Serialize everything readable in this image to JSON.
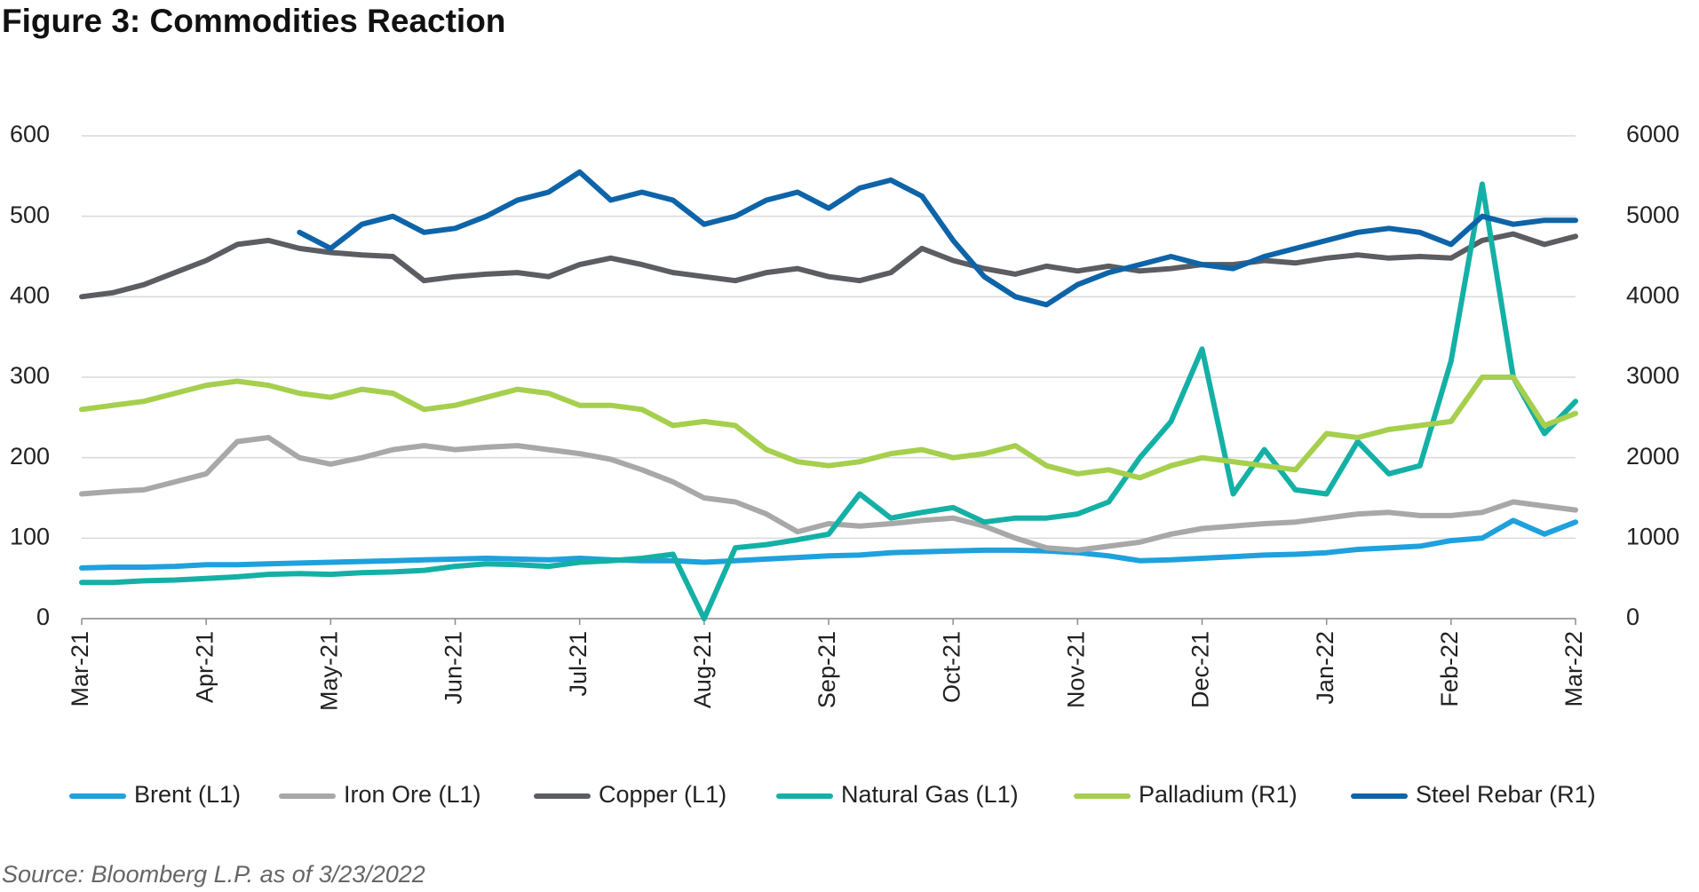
{
  "chart_data": {
    "type": "line",
    "title": "Figure 3: Commodities Reaction",
    "source": "Source: Bloomberg L.P. as of 3/23/2022",
    "x": [
      0,
      0.25,
      0.5,
      0.75,
      1,
      1.25,
      1.5,
      1.75,
      2,
      2.25,
      2.5,
      2.75,
      3,
      3.25,
      3.5,
      3.75,
      4,
      4.25,
      4.5,
      4.75,
      5,
      5.25,
      5.5,
      5.75,
      6,
      6.25,
      6.5,
      6.75,
      7,
      7.25,
      7.5,
      7.75,
      8,
      8.25,
      8.5,
      8.75,
      9,
      9.25,
      9.5,
      9.75,
      10,
      10.25,
      10.5,
      10.75,
      11,
      11.25,
      11.5,
      11.75,
      12
    ],
    "xlim": [
      0,
      12
    ],
    "xticks": [
      {
        "value": 0,
        "label": "Mar-21"
      },
      {
        "value": 1,
        "label": "Apr-21"
      },
      {
        "value": 2,
        "label": "May-21"
      },
      {
        "value": 3,
        "label": "Jun-21"
      },
      {
        "value": 4,
        "label": "Jul-21"
      },
      {
        "value": 5,
        "label": "Aug-21"
      },
      {
        "value": 6,
        "label": "Sep-21"
      },
      {
        "value": 7,
        "label": "Oct-21"
      },
      {
        "value": 8,
        "label": "Nov-21"
      },
      {
        "value": 9,
        "label": "Dec-21"
      },
      {
        "value": 10,
        "label": "Jan-22"
      },
      {
        "value": 11,
        "label": "Feb-22"
      },
      {
        "value": 12,
        "label": "Mar-22"
      }
    ],
    "ylim": [
      0,
      600
    ],
    "yticks": [
      0,
      100,
      200,
      300,
      400,
      500,
      600
    ],
    "y2lim": [
      0,
      6000
    ],
    "y2ticks": [
      0,
      1000,
      2000,
      3000,
      4000,
      5000,
      6000
    ],
    "grid": true,
    "legend": "bottom",
    "series": [
      {
        "name": "Brent (L1)",
        "color": "#1ea1dc",
        "values": [
          63,
          64,
          64,
          65,
          67,
          67,
          68,
          69,
          70,
          71,
          72,
          73,
          74,
          75,
          74,
          73,
          75,
          73,
          72,
          72,
          70,
          72,
          74,
          76,
          78,
          79,
          82,
          83,
          84,
          85,
          85,
          84,
          82,
          78,
          72,
          73,
          75,
          77,
          79,
          80,
          82,
          86,
          88,
          90,
          97,
          100,
          122,
          105,
          120
        ]
      },
      {
        "name": "Iron Ore (L1)",
        "color": "#a8a8a8",
        "values": [
          155,
          158,
          160,
          170,
          180,
          220,
          225,
          200,
          192,
          200,
          210,
          215,
          210,
          213,
          215,
          210,
          205,
          198,
          185,
          170,
          150,
          145,
          130,
          108,
          118,
          115,
          118,
          122,
          125,
          115,
          100,
          88,
          85,
          90,
          95,
          105,
          112,
          115,
          118,
          120,
          125,
          130,
          132,
          128,
          128,
          132,
          145,
          140,
          135
        ]
      },
      {
        "name": "Copper (L1)",
        "color": "#5b5d62",
        "values": [
          400,
          405,
          415,
          430,
          445,
          465,
          470,
          460,
          455,
          452,
          450,
          420,
          425,
          428,
          430,
          425,
          440,
          448,
          440,
          430,
          425,
          420,
          430,
          435,
          425,
          420,
          430,
          460,
          445,
          435,
          428,
          438,
          432,
          438,
          432,
          435,
          440,
          440,
          445,
          442,
          448,
          452,
          448,
          450,
          448,
          470,
          478,
          465,
          475
        ]
      },
      {
        "name": "Natural Gas (L1)",
        "color": "#14b0a6",
        "values": [
          45,
          45,
          47,
          48,
          50,
          52,
          55,
          56,
          55,
          57,
          58,
          60,
          65,
          68,
          67,
          65,
          70,
          72,
          75,
          80,
          0,
          88,
          92,
          98,
          105,
          155,
          125,
          132,
          138,
          120,
          125,
          125,
          130,
          145,
          200,
          245,
          335,
          155,
          210,
          160,
          155,
          220,
          180,
          190,
          320,
          540,
          300,
          230,
          270
        ]
      },
      {
        "name": "Palladium (R1)",
        "color": "#a5cf4d",
        "axis": "y2",
        "values": [
          2600,
          2650,
          2700,
          2800,
          2900,
          2950,
          2900,
          2800,
          2750,
          2850,
          2800,
          2600,
          2650,
          2750,
          2850,
          2800,
          2650,
          2650,
          2600,
          2400,
          2450,
          2400,
          2100,
          1950,
          1900,
          1950,
          2050,
          2100,
          2000,
          2050,
          2150,
          1900,
          1800,
          1850,
          1750,
          1900,
          2000,
          1950,
          1900,
          1850,
          2300,
          2250,
          2350,
          2400,
          2450,
          3000,
          3000,
          2400,
          2550
        ]
      },
      {
        "name": "Steel Rebar (R1)",
        "color": "#0e64a8",
        "axis": "y2",
        "values": [
          null,
          null,
          null,
          null,
          null,
          null,
          null,
          4800,
          4600,
          4900,
          5000,
          4800,
          4850,
          5000,
          5200,
          5300,
          5550,
          5200,
          5300,
          5200,
          4900,
          5000,
          5200,
          5300,
          5100,
          5350,
          5450,
          5250,
          4700,
          4250,
          4000,
          3900,
          4150,
          4300,
          4400,
          4500,
          4400,
          4350,
          4500,
          4600,
          4700,
          4800,
          4850,
          4800,
          4650,
          5000,
          4900,
          4950,
          4950
        ]
      }
    ]
  }
}
